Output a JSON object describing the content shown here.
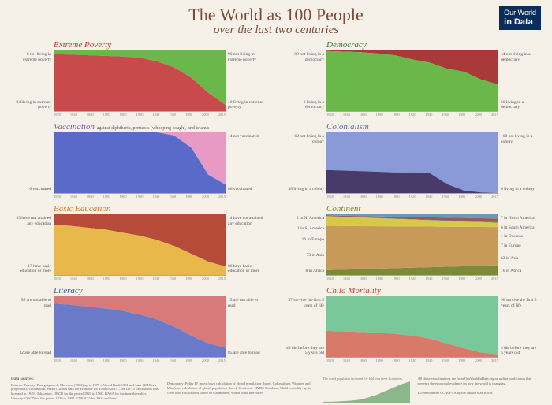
{
  "title": "The World as 100 People",
  "subtitle": "over the last two centuries",
  "logo": {
    "line1": "Our World",
    "line2": "in Data"
  },
  "xaxis": {
    "start": 1820,
    "end": 2015,
    "ticks": [
      1820,
      1840,
      1860,
      1880,
      1900,
      1920,
      1940,
      1960,
      1980,
      2000,
      2015
    ]
  },
  "title_colors": {
    "poverty": "#b33a3a",
    "vaccination": "#8a5aa8",
    "education": "#c77a2a",
    "literacy": "#3a5aa8",
    "democracy": "#3a7a3a",
    "colonialism": "#5a6aa8",
    "continent": "#7a8a3a",
    "mortality": "#b34a3a"
  },
  "panels": {
    "poverty": {
      "title": "Extreme Poverty",
      "top_color": "#6ab84a",
      "bottom_color": "#c84a4a",
      "left_top": "6 not living in extreme poverty",
      "left_bot": "94 living in extreme poverty",
      "right_top": "90 not living in extreme poverty",
      "right_bot": "10 living in extreme poverty",
      "series": [
        6,
        7,
        8,
        9,
        10,
        12,
        18,
        28,
        45,
        70,
        90
      ]
    },
    "vaccination": {
      "title": "Vaccination",
      "title_sub": "against diphtheria, pertussis (whooping cough), and tetanus",
      "top_color": "#e89ac4",
      "bottom_color": "#5a6ac8",
      "left_top": "",
      "left_bot": "0 vaccinated",
      "right_top": "14 not vaccinated",
      "right_bot": "86 vaccinated",
      "series": [
        0,
        0,
        0,
        0,
        0,
        0,
        0,
        5,
        25,
        70,
        86
      ]
    },
    "education": {
      "title": "Basic Education",
      "top_color": "#b84a3a",
      "bottom_color": "#e8b84a",
      "left_top": "83 have not attained any education",
      "left_bot": "17 have basic education or more",
      "right_top": "14 have not attained any education",
      "right_bot": "86 have basic education or more",
      "series": [
        17,
        19,
        22,
        25,
        30,
        35,
        42,
        52,
        65,
        78,
        86
      ]
    },
    "literacy": {
      "title": "Literacy",
      "top_color": "#d87a7a",
      "bottom_color": "#6a7ac8",
      "left_top": "88 are not able to read",
      "left_bot": "12 are able to read",
      "right_top": "15 are not able to read",
      "right_bot": "85 are able to read",
      "series": [
        12,
        14,
        17,
        20,
        24,
        30,
        38,
        50,
        65,
        78,
        85
      ]
    },
    "democracy": {
      "title": "Democracy",
      "top_color": "#a83a3a",
      "bottom_color": "#6ab84a",
      "left_top": "99 not living in a democracy",
      "left_bot": "1 living in a democracy",
      "right_top": "44 not living in a democracy",
      "right_bot": "56 living in a democracy",
      "series": [
        1,
        2,
        3,
        5,
        8,
        15,
        20,
        30,
        35,
        48,
        56
      ]
    },
    "colonialism": {
      "title": "Colonialism",
      "top_color": "#8a9ad8",
      "bottom_color": "#4a3a6a",
      "left_top": "62 not living in a colony",
      "left_bot": "38 living in a colony",
      "right_top": "100 not living in a colony",
      "right_bot": "0 living in a colony",
      "series": [
        38,
        37,
        36,
        35,
        34,
        34,
        33,
        15,
        4,
        1,
        0
      ],
      "series_is_bottom": true
    },
    "continent": {
      "title": "Continent",
      "type": "stacked",
      "left_labels": [
        "2 in N. America",
        "1 in S. America",
        "16 in Europe",
        "",
        "73 in Asia",
        "",
        "8 in Africa"
      ],
      "right_labels": [
        "7 in North America",
        "6 in South America",
        "1 in Oceania",
        "7 in Europe",
        "",
        "63 in Asia",
        "",
        "16 in Africa"
      ],
      "layers": [
        {
          "name": "africa",
          "color": "#7a8a3a",
          "start": 8,
          "end": 16
        },
        {
          "name": "asia",
          "color": "#c89a5a",
          "start": 73,
          "end": 63
        },
        {
          "name": "europe",
          "color": "#d8c84a",
          "start": 16,
          "end": 7
        },
        {
          "name": "oceania",
          "color": "#5a9a6a",
          "start": 0,
          "end": 1
        },
        {
          "name": "samerica",
          "color": "#9a5a5a",
          "start": 1,
          "end": 6
        },
        {
          "name": "namerica",
          "color": "#6a9ab8",
          "start": 2,
          "end": 7
        }
      ]
    },
    "mortality": {
      "title": "Child Mortality",
      "top_color": "#7ac89a",
      "bottom_color": "#d87a6a",
      "left_top": "57 survive the first 5 years of life",
      "left_bot": "43 die before they are 5 years old",
      "right_top": "96 survive the first 5 years of life",
      "right_bot": "4 die before they are 5 years old",
      "series": [
        43,
        42,
        41,
        40,
        38,
        35,
        30,
        22,
        14,
        7,
        4
      ],
      "series_is_bottom": true
    }
  },
  "footer": {
    "sources_head": "Data sources:",
    "sources_body": "Extreme Poverty: Bourguignon & Morrison (2002) up to 1970 – World Bank 1981 and later (2015 is a projection). Vaccination: WHO (Global data are available for 1980 to 2015 – the DPT3 vaccination was licensed in 1949). Education: OECD for the period 1820 to 1960. IIASA for the time thereafter. Literacy: OECD for the period 1820 to 1990. UNESCO for 2004 and later.",
    "sources_body2": "Democracy: Polity IV index (own calculation of global population share). Colonialism: Wimmer and Min (own calculation of global population share). Continent: HYDE Database. Child mortality: up to 1960 own calculations based on Gapminder; World Bank thereafter.",
    "mini_caption": "The world population increased 6.6-fold over these 2 centuries.",
    "mini_values": [
      "1 Billion",
      "7.4 Billion"
    ],
    "blurb": "All these visualizations are from OurWorldInData.org an online publication that presents the empirical evidence on how the world is changing.",
    "license": "Licensed under CC-BY-SA by the author Max Roser."
  }
}
